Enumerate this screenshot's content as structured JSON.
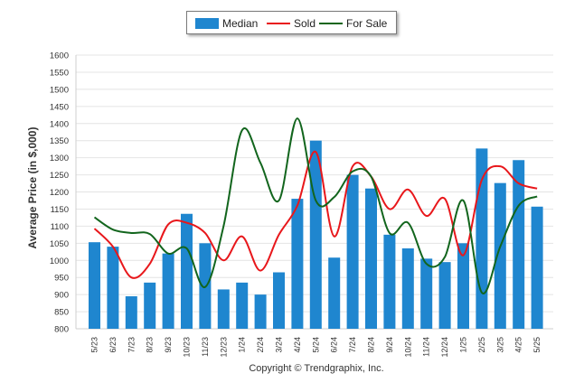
{
  "chart_data": {
    "type": "bar",
    "ylabel": "Average Price (in $,000)",
    "ylim": [
      800,
      1600
    ],
    "yticks": [
      800,
      850,
      900,
      950,
      1000,
      1050,
      1100,
      1150,
      1200,
      1250,
      1300,
      1350,
      1400,
      1450,
      1500,
      1550,
      1600
    ],
    "grid": true,
    "legend_placement": "top-center",
    "categories": [
      "5/23",
      "6/23",
      "7/23",
      "8/23",
      "9/23",
      "10/23",
      "11/23",
      "12/23",
      "1/24",
      "2/24",
      "3/24",
      "4/24",
      "5/24",
      "6/24",
      "7/24",
      "8/24",
      "9/24",
      "10/24",
      "11/24",
      "12/24",
      "1/25",
      "2/25",
      "3/25",
      "4/25",
      "5/25"
    ],
    "series": [
      {
        "name": "Median",
        "kind": "bar",
        "color": "#1f86cf",
        "values": [
          1053,
          1040,
          895,
          935,
          1020,
          1136,
          1050,
          915,
          935,
          900,
          965,
          1180,
          1350,
          1008,
          1250,
          1210,
          1075,
          1035,
          1005,
          995,
          1050,
          1327,
          1226,
          1293,
          1157
        ]
      },
      {
        "name": "Sold",
        "kind": "line",
        "color": "#e8171b",
        "values": [
          1093,
          1040,
          950,
          990,
          1105,
          1110,
          1080,
          1000,
          1070,
          970,
          1075,
          1160,
          1317,
          1070,
          1275,
          1245,
          1150,
          1207,
          1130,
          1180,
          1015,
          1235,
          1275,
          1225,
          1210
        ]
      },
      {
        "name": "For Sale",
        "kind": "line",
        "color": "#12651d",
        "values": [
          1126,
          1090,
          1080,
          1077,
          1020,
          1035,
          922,
          1100,
          1380,
          1285,
          1175,
          1415,
          1175,
          1185,
          1260,
          1245,
          1080,
          1110,
          990,
          1010,
          1175,
          906,
          1040,
          1160,
          1187
        ]
      }
    ]
  },
  "copyright": "Copyright © Trendgraphix, Inc."
}
